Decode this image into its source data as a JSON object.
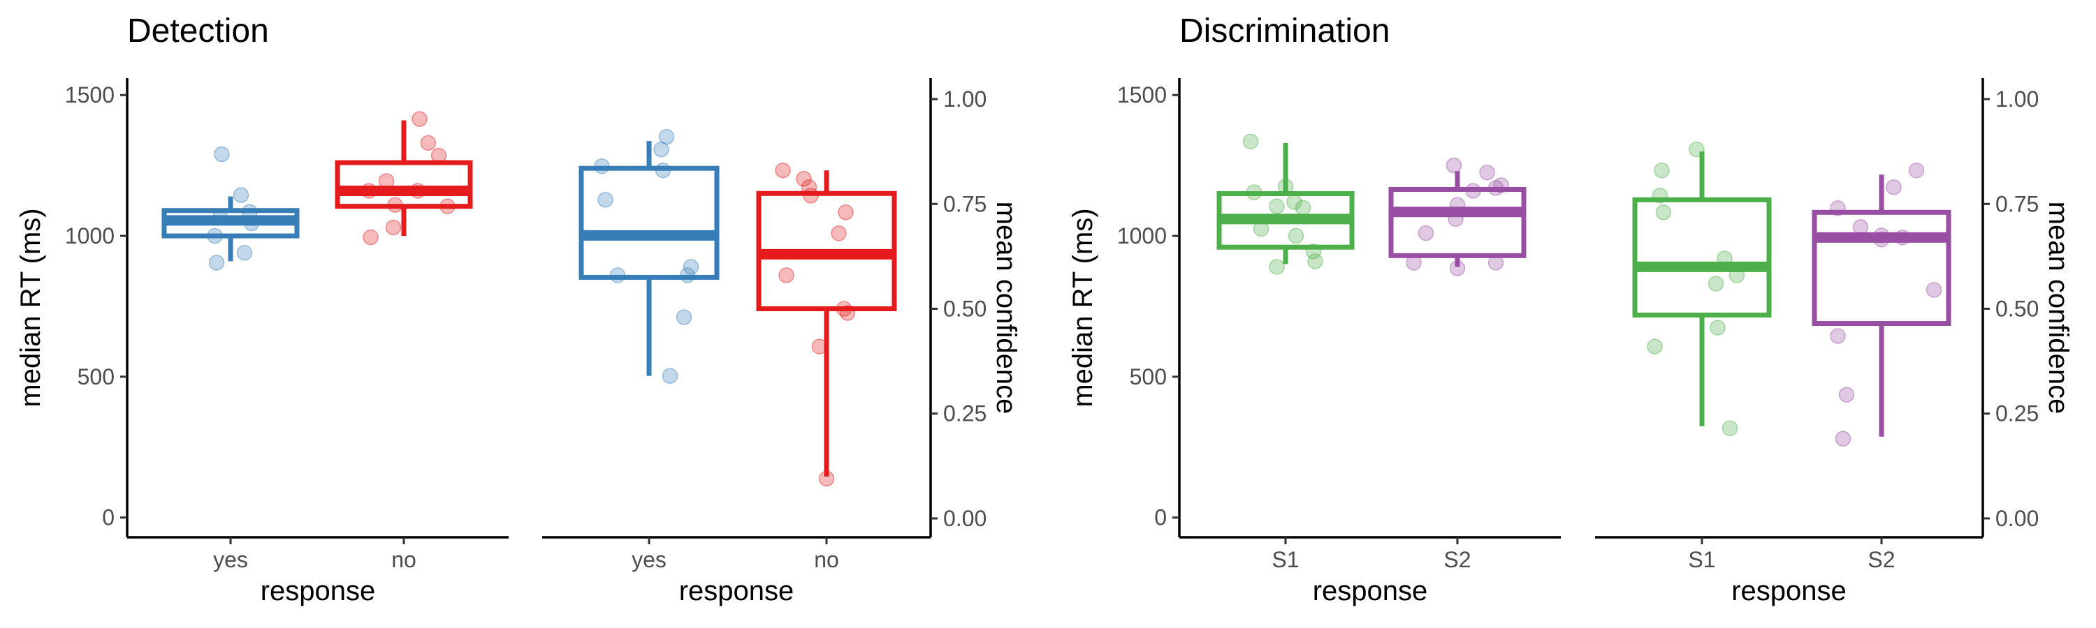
{
  "colors": {
    "blue": "#377eb8",
    "red": "#e41a1c",
    "green": "#4daf4a",
    "purple": "#984ea3"
  },
  "chart_data": [
    {
      "id": "detection",
      "title": "Detection",
      "type": "boxplot",
      "xlabel": "response",
      "categories": [
        "yes",
        "no"
      ],
      "left": {
        "ylabel": "median RT (ms)",
        "ylim": [
          -70,
          1560
        ],
        "yticks": [
          0,
          500,
          1000,
          1500
        ],
        "series": [
          {
            "name": "yes",
            "color": "blue",
            "box": {
              "min": 910,
              "q1": 1000,
              "median": 1055,
              "q3": 1090,
              "max": 1140
            },
            "points": [
              [
                -0.05,
                1290
              ],
              [
                -0.08,
                905
              ],
              [
                -0.09,
                1000
              ],
              [
                -0.06,
                1065
              ],
              [
                0.11,
                1085
              ],
              [
                0.12,
                1045
              ],
              [
                0.06,
                1145
              ],
              [
                0.08,
                940
              ]
            ]
          },
          {
            "name": "no",
            "color": "red",
            "box": {
              "min": 1000,
              "q1": 1105,
              "median": 1160,
              "q3": 1260,
              "max": 1410
            },
            "points": [
              [
                0.09,
                1415
              ],
              [
                0.14,
                1330
              ],
              [
                0.2,
                1285
              ],
              [
                -0.19,
                995
              ],
              [
                -0.06,
                1030
              ],
              [
                -0.2,
                1160
              ],
              [
                -0.1,
                1195
              ],
              [
                -0.05,
                1110
              ],
              [
                0.25,
                1105
              ],
              [
                0.08,
                1160
              ]
            ]
          }
        ]
      },
      "right": {
        "ylabel": "mean confidence",
        "ylim": [
          -0.045,
          1.05
        ],
        "yticks": [
          "0.00",
          "0.25",
          "0.50",
          "0.75",
          "1.00"
        ],
        "series": [
          {
            "name": "yes",
            "color": "blue",
            "box": {
              "min": 0.34,
              "q1": 0.575,
              "median": 0.675,
              "q3": 0.835,
              "max": 0.9
            },
            "points": [
              [
                -0.27,
                0.84
              ],
              [
                -0.25,
                0.76
              ],
              [
                -0.18,
                0.58
              ],
              [
                0.1,
                0.91
              ],
              [
                0.07,
                0.88
              ],
              [
                0.08,
                0.83
              ],
              [
                0.22,
                0.58
              ],
              [
                0.24,
                0.6
              ],
              [
                0.2,
                0.48
              ],
              [
                0.12,
                0.34
              ]
            ]
          },
          {
            "name": "no",
            "color": "red",
            "box": {
              "min": 0.1,
              "q1": 0.5,
              "median": 0.63,
              "q3": 0.775,
              "max": 0.83
            },
            "points": [
              [
                -0.25,
                0.83
              ],
              [
                -0.13,
                0.81
              ],
              [
                -0.1,
                0.79
              ],
              [
                -0.09,
                0.77
              ],
              [
                -0.23,
                0.58
              ],
              [
                -0.04,
                0.41
              ],
              [
                0.07,
                0.68
              ],
              [
                0.11,
                0.73
              ],
              [
                0.1,
                0.5
              ],
              [
                0.12,
                0.49
              ],
              [
                0.0,
                0.095
              ]
            ]
          }
        ]
      }
    },
    {
      "id": "discrimination",
      "title": "Discrimination",
      "type": "boxplot",
      "xlabel": "response",
      "categories": [
        "S1",
        "S2"
      ],
      "left": {
        "ylabel": "median RT (ms)",
        "ylim": [
          -70,
          1560
        ],
        "yticks": [
          0,
          500,
          1000,
          1500
        ],
        "series": [
          {
            "name": "S1",
            "color": "green",
            "box": {
              "min": 900,
              "q1": 960,
              "median": 1060,
              "q3": 1150,
              "max": 1330
            },
            "points": [
              [
                -0.2,
                1335
              ],
              [
                -0.18,
                1155
              ],
              [
                0.0,
                1175
              ],
              [
                -0.05,
                1105
              ],
              [
                0.05,
                1120
              ],
              [
                0.1,
                1100
              ],
              [
                -0.14,
                1025
              ],
              [
                0.06,
                1000
              ],
              [
                0.16,
                945
              ],
              [
                -0.05,
                890
              ],
              [
                0.17,
                910
              ]
            ]
          },
          {
            "name": "S2",
            "color": "purple",
            "box": {
              "min": 890,
              "q1": 930,
              "median": 1085,
              "q3": 1165,
              "max": 1230
            },
            "points": [
              [
                -0.02,
                1250
              ],
              [
                0.17,
                1225
              ],
              [
                0.22,
                1170
              ],
              [
                0.25,
                1180
              ],
              [
                0.09,
                1160
              ],
              [
                0.0,
                1110
              ],
              [
                -0.01,
                1060
              ],
              [
                -0.18,
                1010
              ],
              [
                -0.25,
                905
              ],
              [
                0.22,
                905
              ],
              [
                0.0,
                885
              ]
            ]
          }
        ]
      },
      "right": {
        "ylabel": "mean confidence",
        "ylim": [
          -0.045,
          1.05
        ],
        "yticks": [
          "0.00",
          "0.25",
          "0.50",
          "0.75",
          "1.00"
        ],
        "series": [
          {
            "name": "S1",
            "color": "green",
            "box": {
              "min": 0.22,
              "q1": 0.485,
              "median": 0.6,
              "q3": 0.76,
              "max": 0.875
            },
            "points": [
              [
                -0.23,
                0.83
              ],
              [
                -0.24,
                0.77
              ],
              [
                -0.22,
                0.73
              ],
              [
                -0.27,
                0.41
              ],
              [
                -0.03,
                0.88
              ],
              [
                0.13,
                0.62
              ],
              [
                0.08,
                0.56
              ],
              [
                0.2,
                0.58
              ],
              [
                0.09,
                0.455
              ],
              [
                0.16,
                0.215
              ]
            ]
          },
          {
            "name": "S2",
            "color": "purple",
            "box": {
              "min": 0.195,
              "q1": 0.465,
              "median": 0.67,
              "q3": 0.73,
              "max": 0.82
            },
            "points": [
              [
                -0.25,
                0.74
              ],
              [
                0.2,
                0.83
              ],
              [
                0.07,
                0.79
              ],
              [
                -0.12,
                0.695
              ],
              [
                0.12,
                0.67
              ],
              [
                0.0,
                0.665
              ],
              [
                0.0,
                0.675
              ],
              [
                0.3,
                0.545
              ],
              [
                -0.25,
                0.435
              ],
              [
                -0.2,
                0.295
              ],
              [
                -0.22,
                0.19
              ]
            ]
          }
        ]
      }
    }
  ]
}
